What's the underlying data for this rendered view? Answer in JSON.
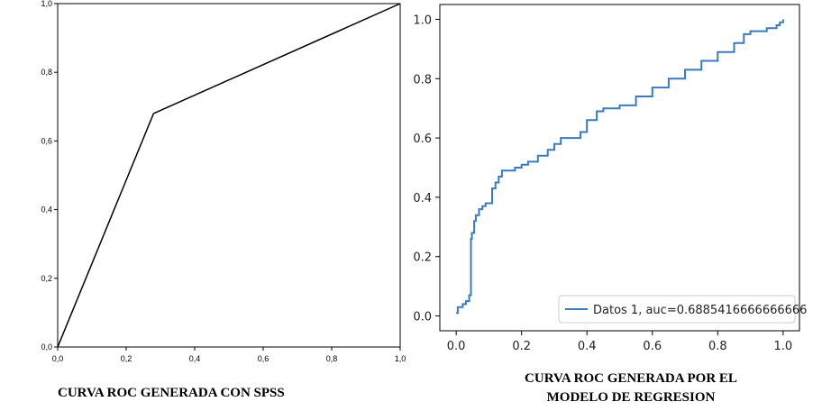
{
  "chart_data": [
    {
      "type": "line",
      "title": "",
      "caption": "CURVA ROC GENERADA CON SPSS",
      "xlabel": "",
      "ylabel": "",
      "xlim": [
        0,
        1
      ],
      "ylim": [
        0,
        1
      ],
      "x_ticks": [
        "0,0",
        "0,2",
        "0,4",
        "0,6",
        "0,8",
        "1,0"
      ],
      "y_ticks": [
        "0,0",
        "0,2",
        "0,4",
        "0,6",
        "0,8",
        "1,0"
      ],
      "grid": false,
      "series": [
        {
          "x": [
            0,
            0.28,
            1
          ],
          "y": [
            0,
            0.68,
            1
          ],
          "color": "#000000"
        }
      ]
    },
    {
      "type": "line",
      "title": "",
      "caption_line1": "CURVA ROC GENERADA POR EL",
      "caption_line2": "MODELO DE REGRESION",
      "xlabel": "",
      "ylabel": "",
      "xlim": [
        -0.05,
        1.05
      ],
      "ylim": [
        -0.05,
        1.05
      ],
      "x_ticks": [
        "0.0",
        "0.2",
        "0.4",
        "0.6",
        "0.8",
        "1.0"
      ],
      "y_ticks": [
        "0.0",
        "0.2",
        "0.4",
        "0.6",
        "0.8",
        "1.0"
      ],
      "grid": false,
      "legend_position": "bottom-right",
      "series": [
        {
          "name": "Datos 1, auc=0.6885416666666666",
          "color": "#3a7bbf",
          "x": [
            0,
            0.005,
            0.02,
            0.03,
            0.04,
            0.045,
            0.048,
            0.055,
            0.06,
            0.07,
            0.08,
            0.09,
            0.1,
            0.11,
            0.12,
            0.13,
            0.14,
            0.16,
            0.18,
            0.2,
            0.22,
            0.25,
            0.28,
            0.3,
            0.32,
            0.35,
            0.38,
            0.4,
            0.43,
            0.45,
            0.5,
            0.55,
            0.6,
            0.65,
            0.7,
            0.75,
            0.8,
            0.85,
            0.88,
            0.9,
            0.95,
            0.98,
            0.99,
            1.0
          ],
          "y": [
            0.01,
            0.03,
            0.04,
            0.05,
            0.07,
            0.26,
            0.28,
            0.32,
            0.34,
            0.36,
            0.37,
            0.38,
            0.38,
            0.43,
            0.45,
            0.47,
            0.49,
            0.49,
            0.5,
            0.51,
            0.52,
            0.54,
            0.56,
            0.58,
            0.6,
            0.6,
            0.62,
            0.66,
            0.69,
            0.7,
            0.71,
            0.74,
            0.77,
            0.8,
            0.83,
            0.86,
            0.89,
            0.92,
            0.95,
            0.96,
            0.97,
            0.98,
            0.99,
            1.0
          ]
        }
      ]
    }
  ]
}
